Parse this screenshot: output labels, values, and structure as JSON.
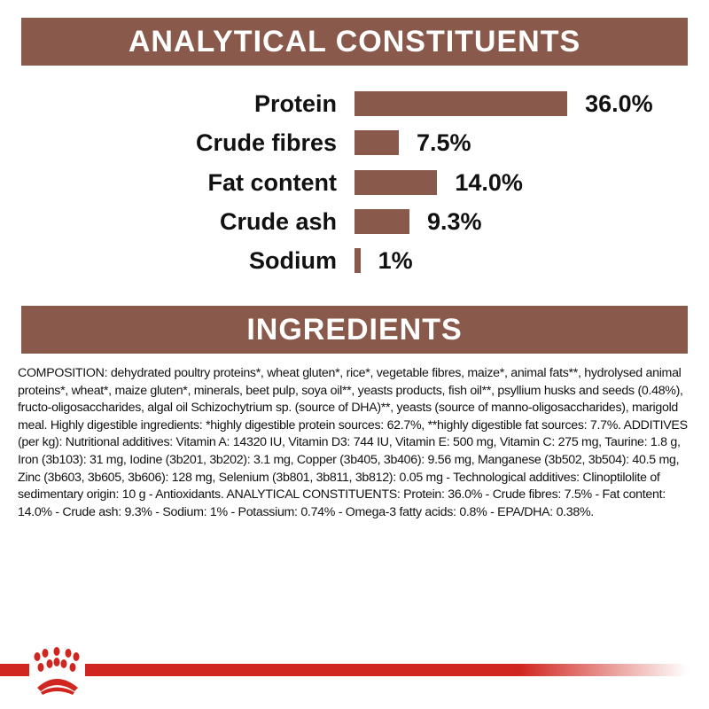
{
  "analytical": {
    "title": "ANALYTICAL CONSTITUENTS",
    "items": [
      {
        "label": "Protein",
        "value": 36.0,
        "display": "36.0%"
      },
      {
        "label": "Crude fibres",
        "value": 7.5,
        "display": "7.5%"
      },
      {
        "label": "Fat content",
        "value": 14.0,
        "display": "14.0%"
      },
      {
        "label": "Crude ash",
        "value": 9.3,
        "display": "9.3%"
      },
      {
        "label": "Sodium",
        "value": 1,
        "display": "1%"
      }
    ]
  },
  "ingredients": {
    "title": "INGREDIENTS",
    "text": "COMPOSITION: dehydrated poultry proteins*, wheat gluten*, rice*, vegetable fibres, maize*, animal fats**, hydrolysed animal proteins*, wheat*, maize gluten*, minerals, beet pulp, soya oil**, yeasts products, fish oil**, psyllium husks and seeds (0.48%), fructo-oligosaccharides, algal oil Schizochytrium sp. (source of DHA)**, yeasts (source of manno-oligosaccharides), marigold meal. Highly digestible ingredients: *highly digestible protein sources: 62.7%, **highly digestible fat sources: 7.7%. ADDITIVES (per kg): Nutritional additives: Vitamin A: 14320 IU, Vitamin D3: 744 IU, Vitamin E: 500 mg, Vitamin C: 275 mg, Taurine: 1.8 g, Iron (3b103): 31 mg, Iodine (3b201, 3b202): 3.1 mg, Copper (3b405, 3b406): 9.56 mg, Manganese (3b502, 3b504): 40.5 mg, Zinc (3b603, 3b605, 3b606): 128 mg, Selenium (3b801, 3b811, 3b812): 0.05 mg - Technological additives: Clinoptilolite of sedimentary origin: 10 g - Antioxidants. ANALYTICAL CONSTITUENTS: Protein: 36.0% - Crude fibres: 7.5% - Fat content: 14.0% - Crude ash: 9.3% - Sodium: 1% - Potassium: 0.74% - Omega-3 fatty acids: 0.8% - EPA/DHA: 0.38%."
  },
  "colors": {
    "band": "#895a4b",
    "brand_red": "#d0261f"
  },
  "logo": {
    "icon": "royal-canin-crown-icon"
  }
}
